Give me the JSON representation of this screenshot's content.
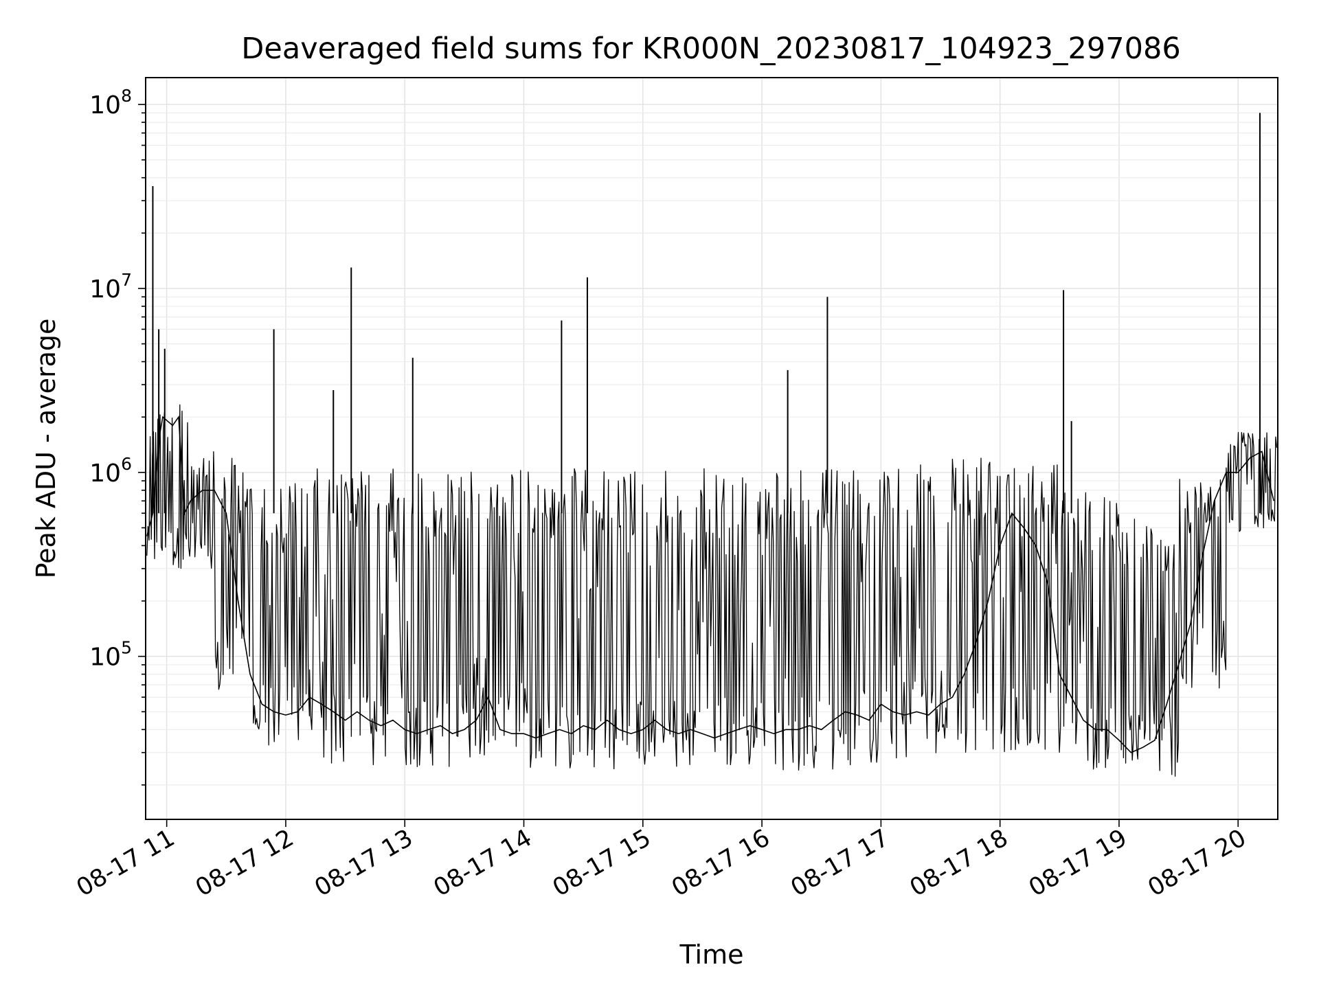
{
  "chart_data": {
    "type": "line",
    "title": "Deaveraged field sums for KR000N_20230817_104923_297086",
    "xlabel": "Time",
    "ylabel": "Peak ADU - average",
    "yscale": "log",
    "ylim": [
      13000,
      140000000
    ],
    "xlim": [
      "2023-08-17 10:49:23",
      "2023-08-17 20:20:00"
    ],
    "grid": true,
    "line_color": "#000000",
    "x_ticks": [
      {
        "label": "08-17 11",
        "time": "2023-08-17 11:00"
      },
      {
        "label": "08-17 12",
        "time": "2023-08-17 12:00"
      },
      {
        "label": "08-17 13",
        "time": "2023-08-17 13:00"
      },
      {
        "label": "08-17 14",
        "time": "2023-08-17 14:00"
      },
      {
        "label": "08-17 15",
        "time": "2023-08-17 15:00"
      },
      {
        "label": "08-17 16",
        "time": "2023-08-17 16:00"
      },
      {
        "label": "08-17 17",
        "time": "2023-08-17 17:00"
      },
      {
        "label": "08-17 18",
        "time": "2023-08-17 18:00"
      },
      {
        "label": "08-17 19",
        "time": "2023-08-17 19:00"
      },
      {
        "label": "08-17 20",
        "time": "2023-08-17 20:00"
      }
    ],
    "y_ticks": [
      {
        "base": "10",
        "exp": "5",
        "value": 100000
      },
      {
        "base": "10",
        "exp": "6",
        "value": 1000000
      },
      {
        "base": "10",
        "exp": "7",
        "value": 10000000
      },
      {
        "base": "10",
        "exp": "8",
        "value": 100000000
      }
    ],
    "series": [
      {
        "x": [
          "2023-08-17 10:50",
          "2023-08-17 10:53",
          "2023-08-17 10:56",
          "2023-08-17 10:58",
          "2023-08-17 11:03",
          "2023-08-17 11:06",
          "2023-08-17 11:09",
          "2023-08-17 11:12",
          "2023-08-17 11:18",
          "2023-08-17 11:24",
          "2023-08-17 11:30",
          "2023-08-17 11:36",
          "2023-08-17 11:42",
          "2023-08-17 11:48",
          "2023-08-17 11:54",
          "2023-08-17 12:00",
          "2023-08-17 12:06",
          "2023-08-17 12:12",
          "2023-08-17 12:18",
          "2023-08-17 12:24",
          "2023-08-17 12:30",
          "2023-08-17 12:36",
          "2023-08-17 12:42",
          "2023-08-17 12:48",
          "2023-08-17 12:54",
          "2023-08-17 13:00",
          "2023-08-17 13:06",
          "2023-08-17 13:12",
          "2023-08-17 13:18",
          "2023-08-17 13:24",
          "2023-08-17 13:30",
          "2023-08-17 13:36",
          "2023-08-17 13:42",
          "2023-08-17 13:48",
          "2023-08-17 13:54",
          "2023-08-17 14:00",
          "2023-08-17 14:06",
          "2023-08-17 14:12",
          "2023-08-17 14:18",
          "2023-08-17 14:24",
          "2023-08-17 14:30",
          "2023-08-17 14:36",
          "2023-08-17 14:42",
          "2023-08-17 14:48",
          "2023-08-17 14:54",
          "2023-08-17 15:00",
          "2023-08-17 15:06",
          "2023-08-17 15:12",
          "2023-08-17 15:18",
          "2023-08-17 15:24",
          "2023-08-17 15:30",
          "2023-08-17 15:36",
          "2023-08-17 15:42",
          "2023-08-17 15:48",
          "2023-08-17 15:54",
          "2023-08-17 16:00",
          "2023-08-17 16:06",
          "2023-08-17 16:12",
          "2023-08-17 16:18",
          "2023-08-17 16:24",
          "2023-08-17 16:30",
          "2023-08-17 16:36",
          "2023-08-17 16:42",
          "2023-08-17 16:48",
          "2023-08-17 16:54",
          "2023-08-17 17:00",
          "2023-08-17 17:06",
          "2023-08-17 17:12",
          "2023-08-17 17:18",
          "2023-08-17 17:24",
          "2023-08-17 17:30",
          "2023-08-17 17:36",
          "2023-08-17 17:42",
          "2023-08-17 17:48",
          "2023-08-17 17:54",
          "2023-08-17 18:00",
          "2023-08-17 18:06",
          "2023-08-17 18:12",
          "2023-08-17 18:18",
          "2023-08-17 18:24",
          "2023-08-17 18:30",
          "2023-08-17 18:36",
          "2023-08-17 18:42",
          "2023-08-17 18:48",
          "2023-08-17 18:54",
          "2023-08-17 19:00",
          "2023-08-17 19:06",
          "2023-08-17 19:12",
          "2023-08-17 19:18",
          "2023-08-17 19:24",
          "2023-08-17 19:30",
          "2023-08-17 19:36",
          "2023-08-17 19:42",
          "2023-08-17 19:48",
          "2023-08-17 19:54",
          "2023-08-17 20:00",
          "2023-08-17 20:06",
          "2023-08-17 20:12",
          "2023-08-17 20:18"
        ],
        "y": [
          450000,
          600000,
          1500000,
          2000000,
          1800000,
          2000000,
          600000,
          700000,
          800000,
          800000,
          600000,
          200000,
          80000,
          55000,
          50000,
          48000,
          50000,
          60000,
          55000,
          50000,
          45000,
          50000,
          45000,
          42000,
          45000,
          40000,
          38000,
          40000,
          42000,
          38000,
          40000,
          45000,
          60000,
          40000,
          38000,
          38000,
          36000,
          38000,
          40000,
          38000,
          42000,
          40000,
          45000,
          40000,
          38000,
          40000,
          45000,
          40000,
          38000,
          40000,
          38000,
          36000,
          38000,
          40000,
          42000,
          40000,
          38000,
          40000,
          40000,
          42000,
          40000,
          45000,
          50000,
          48000,
          45000,
          55000,
          50000,
          48000,
          50000,
          48000,
          55000,
          60000,
          80000,
          120000,
          200000,
          400000,
          600000,
          500000,
          400000,
          250000,
          80000,
          60000,
          45000,
          40000,
          40000,
          35000,
          30000,
          32000,
          35000,
          55000,
          90000,
          150000,
          350000,
          700000,
          1000000,
          1000000,
          1200000,
          1300000,
          700000
        ]
      }
    ],
    "bands": [
      {
        "from": "2023-08-17 10:50",
        "to": "2023-08-17 11:12",
        "low": 300000,
        "high": 2500000
      },
      {
        "from": "2023-08-17 11:12",
        "to": "2023-08-17 11:24",
        "low": 300000,
        "high": 1300000
      },
      {
        "from": "2023-08-17 11:24",
        "to": "2023-08-17 11:42",
        "low": 60000,
        "high": 1200000
      },
      {
        "from": "2023-08-17 11:42",
        "to": "2023-08-17 12:12",
        "low": 32000,
        "high": 900000
      },
      {
        "from": "2023-08-17 12:12",
        "to": "2023-08-17 14:00",
        "low": 25000,
        "high": 1050000
      },
      {
        "from": "2023-08-17 14:00",
        "to": "2023-08-17 17:00",
        "low": 24000,
        "high": 1050000
      },
      {
        "from": "2023-08-17 17:00",
        "to": "2023-08-17 18:00",
        "low": 28000,
        "high": 1200000
      },
      {
        "from": "2023-08-17 18:00",
        "to": "2023-08-17 18:36",
        "low": 30000,
        "high": 1100000
      },
      {
        "from": "2023-08-17 18:36",
        "to": "2023-08-17 19:00",
        "low": 24000,
        "high": 800000
      },
      {
        "from": "2023-08-17 19:00",
        "to": "2023-08-17 19:30",
        "low": 22000,
        "high": 600000
      },
      {
        "from": "2023-08-17 19:30",
        "to": "2023-08-17 19:54",
        "low": 60000,
        "high": 1000000
      },
      {
        "from": "2023-08-17 19:54",
        "to": "2023-08-17 20:20",
        "low": 450000,
        "high": 1700000
      }
    ],
    "spikes": [
      {
        "x": "2023-08-17 10:53",
        "y": 36000000
      },
      {
        "x": "2023-08-17 10:56",
        "y": 6000000
      },
      {
        "x": "2023-08-17 10:59",
        "y": 4700000
      },
      {
        "x": "2023-08-17 11:54",
        "y": 6000000
      },
      {
        "x": "2023-08-17 12:24",
        "y": 2800000
      },
      {
        "x": "2023-08-17 12:33",
        "y": 13000000
      },
      {
        "x": "2023-08-17 13:04",
        "y": 4200000
      },
      {
        "x": "2023-08-17 14:19",
        "y": 6700000
      },
      {
        "x": "2023-08-17 14:32",
        "y": 11500000
      },
      {
        "x": "2023-08-17 16:13",
        "y": 3600000
      },
      {
        "x": "2023-08-17 16:33",
        "y": 9000000
      },
      {
        "x": "2023-08-17 18:32",
        "y": 9800000
      },
      {
        "x": "2023-08-17 18:36",
        "y": 1900000
      },
      {
        "x": "2023-08-17 20:11",
        "y": 90000000
      }
    ]
  }
}
